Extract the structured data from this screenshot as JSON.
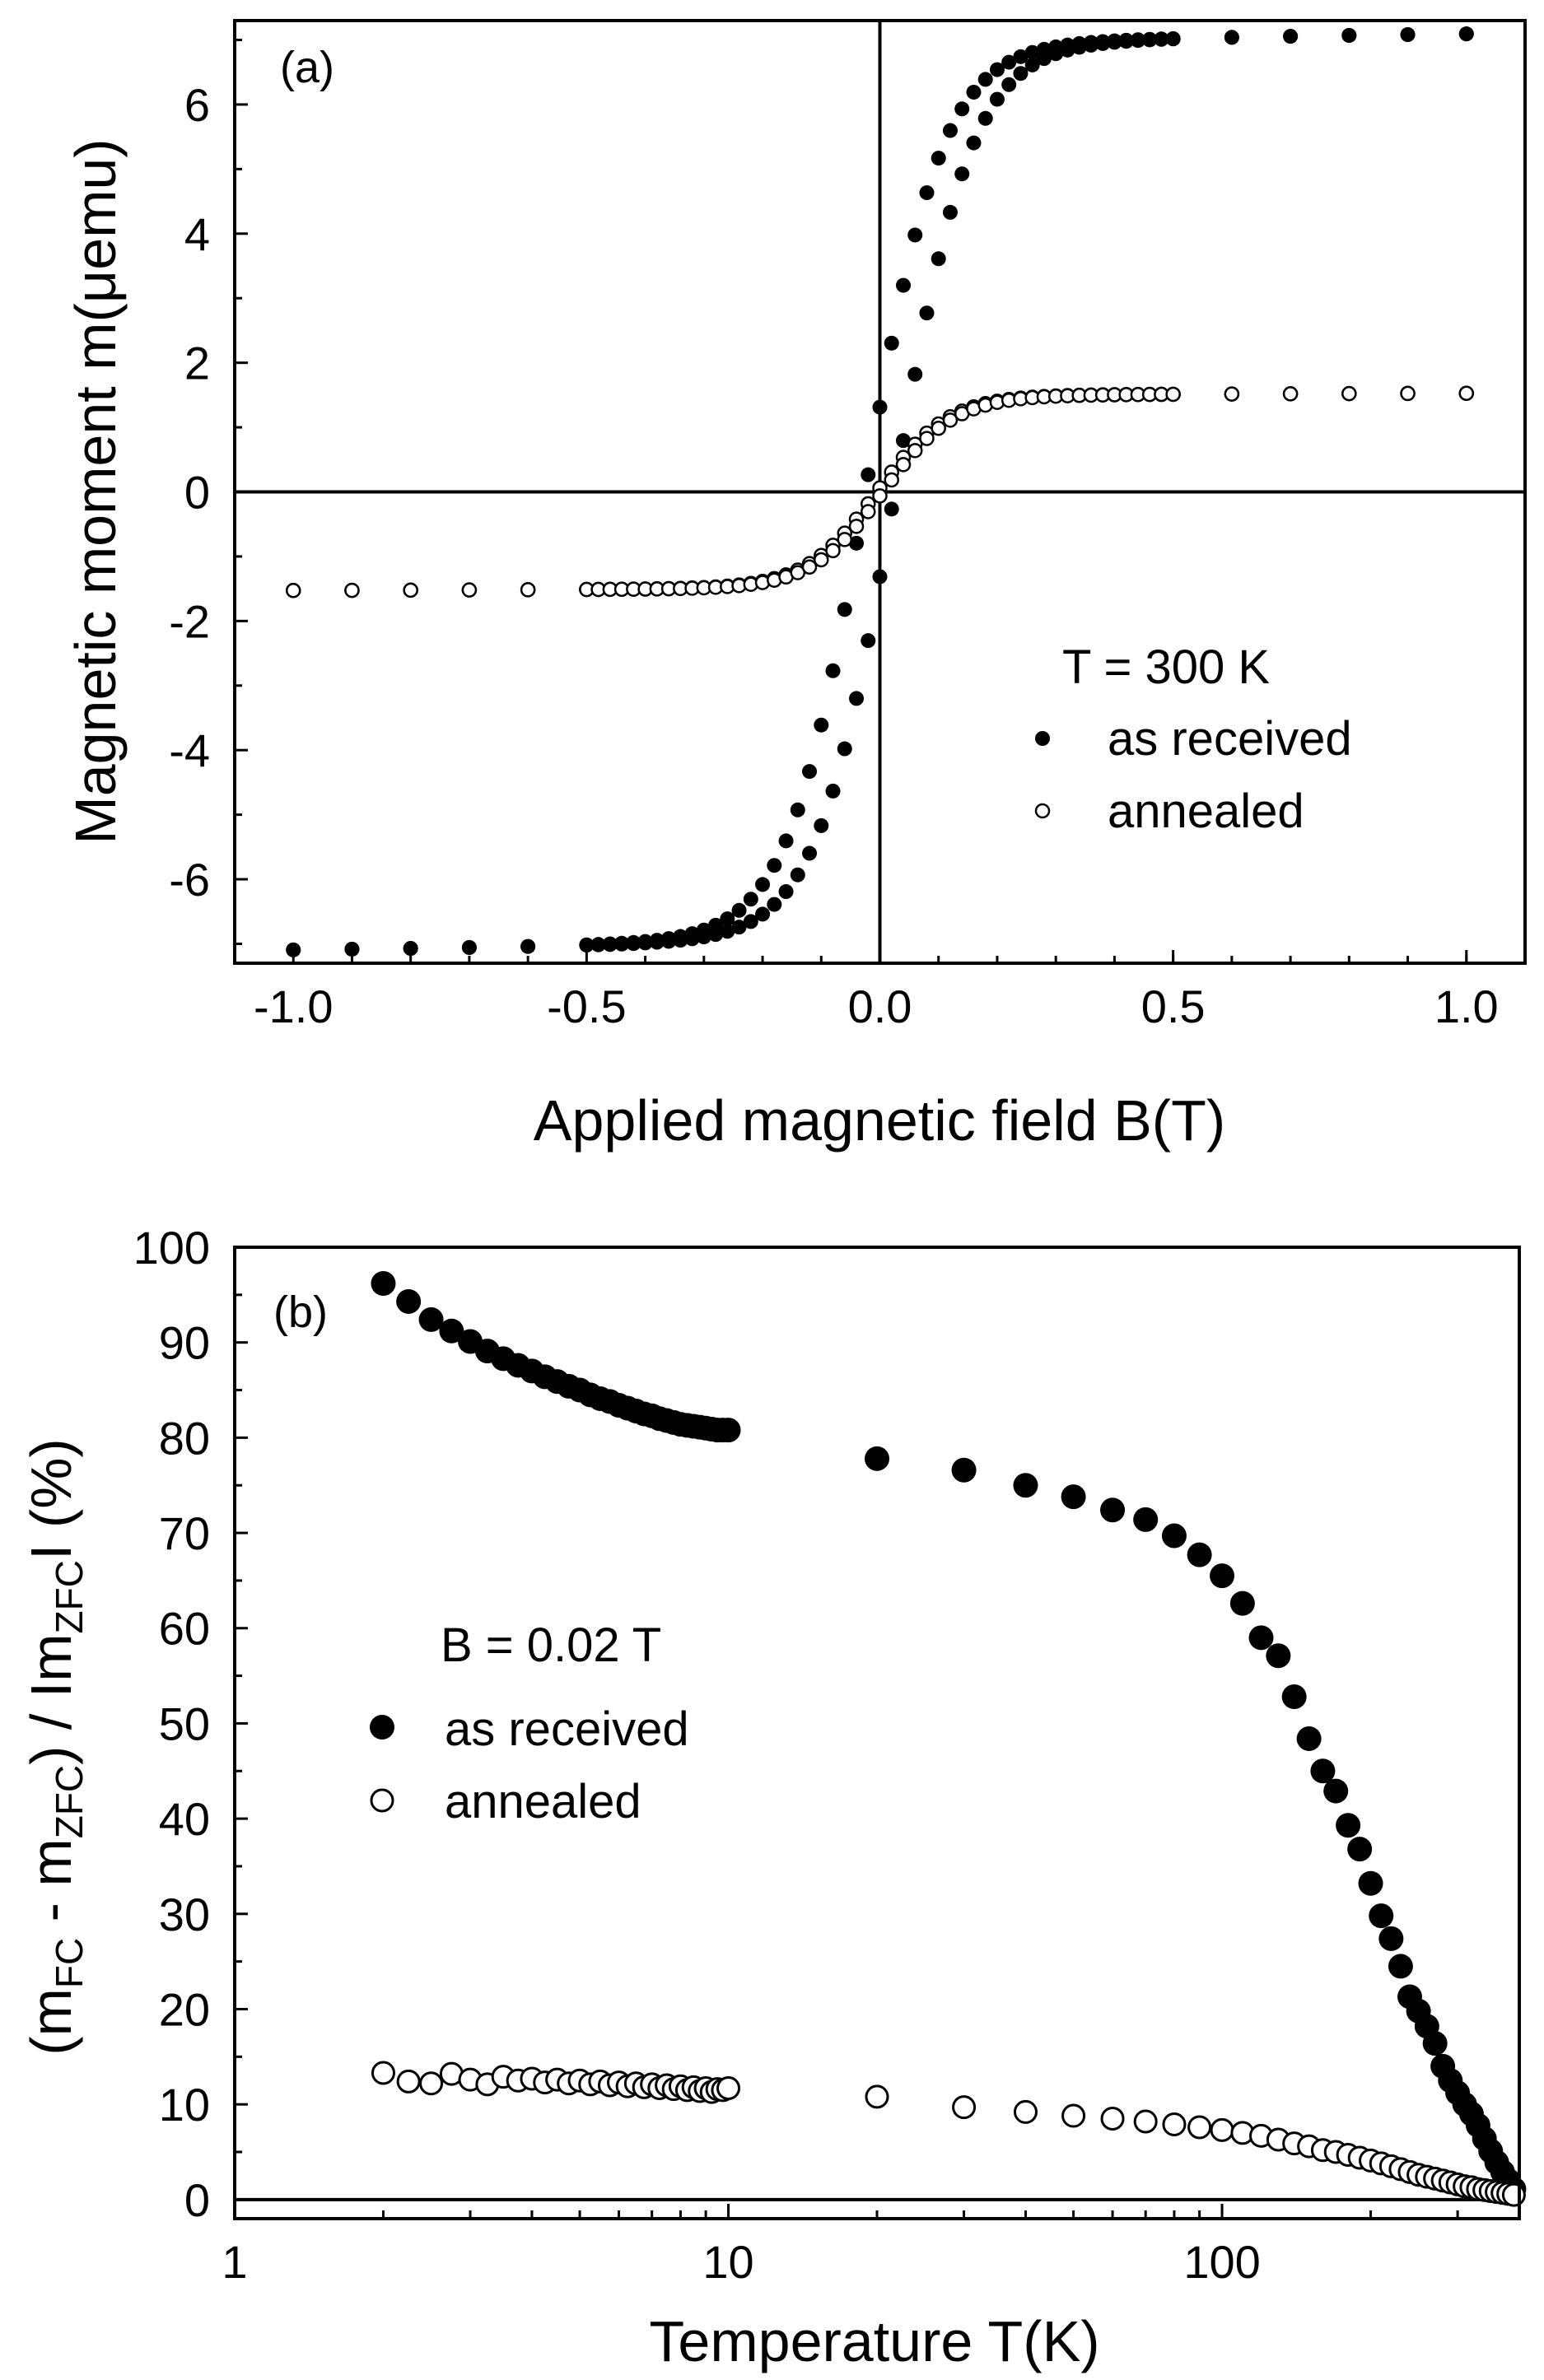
{
  "chart_data": [
    {
      "panel": "(a)",
      "type": "scatter",
      "xlabel": "Applied magnetic field B(T)",
      "ylabel": "Magnetic moment m(μemu)",
      "xlim": [
        -1.1,
        1.1
      ],
      "ylim": [
        -7.3,
        7.3
      ],
      "xticks": [
        -1.0,
        -0.5,
        0.0,
        0.5,
        1.0
      ],
      "xtick_labels": [
        "-1.0",
        "-0.5",
        "0.0",
        "0.5",
        "1.0"
      ],
      "yticks": [
        -6,
        -4,
        -2,
        0,
        2,
        4,
        6
      ],
      "ytick_labels": [
        "-6",
        "-4",
        "-2",
        "0",
        "2",
        "4",
        "6"
      ],
      "zero_lines": true,
      "legend": {
        "placement": "lower-right",
        "title": "T = 300 K",
        "entries": [
          "as received",
          "annealed"
        ]
      },
      "series": [
        {
          "name": "as received",
          "marker": "filled",
          "a": 7.2,
          "b": 0.13,
          "offset": 0.25
        },
        {
          "name": "annealed",
          "marker": "open",
          "a": 1.55,
          "b": 0.12,
          "offset": 0.05
        }
      ]
    },
    {
      "panel": "(b)",
      "type": "scatter",
      "xscale": "log",
      "xlabel": "Temperature T(K)",
      "ylabel_parts": [
        "(m",
        "FC",
        " - m",
        "ZFC",
        ") / Im",
        "ZFC",
        "I (%)"
      ],
      "xlim": [
        1,
        400
      ],
      "ylim": [
        -2,
        100
      ],
      "xticks": [
        1,
        10,
        100
      ],
      "xtick_labels": [
        "1",
        "10",
        "100"
      ],
      "yticks": [
        0,
        10,
        20,
        30,
        40,
        50,
        60,
        70,
        80,
        90,
        100
      ],
      "ytick_labels": [
        "0",
        "10",
        "20",
        "30",
        "40",
        "50",
        "60",
        "70",
        "80",
        "90",
        "100"
      ],
      "hline": 0,
      "legend": {
        "placement": "center-left",
        "title": "B = 0.02 T",
        "entries": [
          "as received",
          "annealed"
        ]
      },
      "series": [
        {
          "name": "as received",
          "marker": "filled",
          "x": [
            2.0,
            2.25,
            2.5,
            2.75,
            3.0,
            3.25,
            3.5,
            3.75,
            4.0,
            4.25,
            4.5,
            4.75,
            5.0,
            5.25,
            5.5,
            5.75,
            6.0,
            6.25,
            6.5,
            6.75,
            7.0,
            7.25,
            7.5,
            7.75,
            8.0,
            8.25,
            8.5,
            8.75,
            9.0,
            9.25,
            9.5,
            9.75,
            10,
            20,
            30,
            40,
            50,
            60,
            70,
            80,
            90,
            100,
            110,
            120,
            130,
            140,
            150,
            160,
            170,
            180,
            190,
            200,
            210,
            220,
            230,
            240,
            250,
            260,
            270,
            280,
            290,
            300,
            310,
            320,
            330,
            340,
            350,
            360,
            370,
            380,
            390
          ],
          "y": [
            96.2,
            94.3,
            92.4,
            91.2,
            90.1,
            89.1,
            88.3,
            87.6,
            87.0,
            86.4,
            85.9,
            85.4,
            85.0,
            84.5,
            84.1,
            83.8,
            83.4,
            83.1,
            82.8,
            82.5,
            82.3,
            82.0,
            81.8,
            81.6,
            81.4,
            81.3,
            81.2,
            81.1,
            81.0,
            80.9,
            80.8,
            80.8,
            80.8,
            77.8,
            76.6,
            75.0,
            73.8,
            72.4,
            71.4,
            69.7,
            67.7,
            65.5,
            62.6,
            59.0,
            57.1,
            52.8,
            48.4,
            45.0,
            42.9,
            39.3,
            36.8,
            33.2,
            29.8,
            27.4,
            24.5,
            21.3,
            19.8,
            18.2,
            16.4,
            14.0,
            12.5,
            11.2,
            10.0,
            9.0,
            7.8,
            6.4,
            5.1,
            3.9,
            2.9,
            2.0,
            1.1
          ]
        },
        {
          "name": "annealed",
          "marker": "open",
          "x": [
            2.0,
            2.25,
            2.5,
            2.75,
            3.0,
            3.25,
            3.5,
            3.75,
            4.0,
            4.25,
            4.5,
            4.75,
            5.0,
            5.25,
            5.5,
            5.75,
            6.0,
            6.25,
            6.5,
            6.75,
            7.0,
            7.25,
            7.5,
            7.75,
            8.0,
            8.25,
            8.5,
            8.75,
            9.0,
            9.25,
            9.5,
            9.75,
            10,
            20,
            30,
            40,
            50,
            60,
            70,
            80,
            90,
            100,
            110,
            120,
            130,
            140,
            150,
            160,
            170,
            180,
            190,
            200,
            210,
            220,
            230,
            240,
            250,
            260,
            270,
            280,
            290,
            300,
            310,
            320,
            330,
            340,
            350,
            360,
            370,
            380,
            390
          ],
          "y": [
            13.3,
            12.4,
            12.2,
            13.2,
            12.6,
            12.1,
            12.9,
            12.5,
            12.7,
            12.3,
            12.6,
            12.2,
            12.5,
            12.1,
            12.4,
            12.0,
            12.3,
            11.9,
            12.2,
            11.8,
            12.1,
            11.7,
            12.0,
            11.6,
            11.9,
            11.5,
            11.8,
            11.4,
            11.7,
            11.3,
            11.6,
            11.5,
            11.7,
            10.8,
            9.7,
            9.2,
            8.8,
            8.5,
            8.2,
            7.9,
            7.6,
            7.3,
            7.0,
            6.7,
            6.3,
            5.9,
            5.6,
            5.2,
            5.0,
            4.7,
            4.4,
            4.1,
            3.8,
            3.5,
            3.2,
            2.9,
            2.6,
            2.4,
            2.2,
            2.0,
            1.8,
            1.6,
            1.4,
            1.3,
            1.1,
            1.0,
            0.9,
            0.8,
            0.7,
            0.6,
            0.5
          ]
        }
      ]
    }
  ]
}
